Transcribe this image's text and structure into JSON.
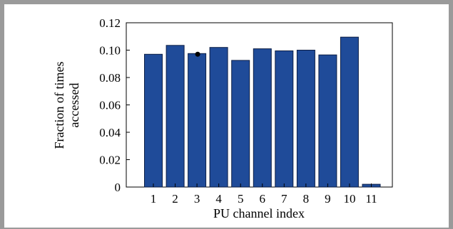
{
  "chart_data": {
    "type": "bar",
    "categories": [
      "1",
      "2",
      "3",
      "4",
      "5",
      "6",
      "7",
      "8",
      "9",
      "10",
      "11"
    ],
    "values": [
      0.097,
      0.1035,
      0.0975,
      0.102,
      0.0925,
      0.101,
      0.0995,
      0.1,
      0.0965,
      0.1095,
      0.002
    ],
    "marker": {
      "category": "3",
      "value": 0.097
    },
    "xlabel": "PU channel index",
    "ylabel_lines": [
      "Fraction of times",
      "accessed"
    ],
    "ylim": [
      0,
      0.12
    ],
    "yticks": [
      0,
      0.02,
      0.04,
      0.06,
      0.08,
      0.1,
      0.12
    ],
    "ytick_labels": [
      "0",
      "0.02",
      "0.04",
      "0.06",
      "0.08",
      "0.10",
      "0.12"
    ],
    "grid": false,
    "bar_color": "#1f4b99",
    "bar_edge_color": "#0d1f45"
  }
}
